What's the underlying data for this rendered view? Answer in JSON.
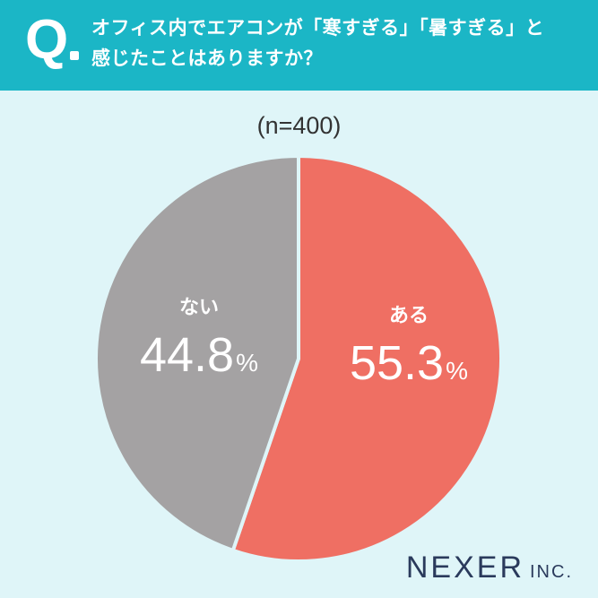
{
  "header": {
    "q_mark": "Q",
    "question_line1": "オフィス内でエアコンが「寒すぎる」「暑すぎる」と",
    "question_line2": "感じたことはありますか？"
  },
  "chart_data": {
    "type": "pie",
    "title": "",
    "note": "(n=400)",
    "slices": [
      {
        "label": "ある",
        "value": 55.3,
        "display": "55.3",
        "unit": "%",
        "color": "#ef6f63"
      },
      {
        "label": "ない",
        "value": 44.8,
        "display": "44.8",
        "unit": "%",
        "color": "#a4a2a3"
      }
    ],
    "start_angle_deg": 0,
    "direction": "clockwise"
  },
  "logo": {
    "main": "NEXER",
    "sub": "INC."
  },
  "colors": {
    "header": "#1bb6c6",
    "background": "#dff5f8"
  }
}
